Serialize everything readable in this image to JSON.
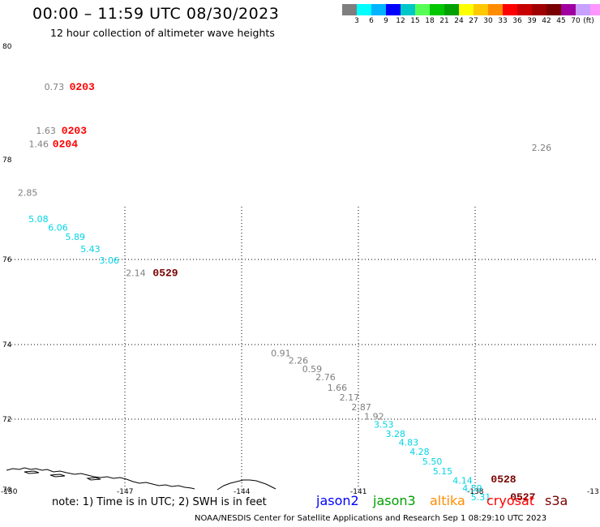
{
  "header": {
    "title": "00:00 – 11:59 UTC 08/30/2023",
    "subtitle": "12 hour collection of altimeter wave heights"
  },
  "colorbar": {
    "colors": [
      "#7f7f7f",
      "#00ffff",
      "#00b4ff",
      "#0000ff",
      "#00c8c8",
      "#55ff55",
      "#00c800",
      "#00a000",
      "#ffff00",
      "#ffc800",
      "#ff8c00",
      "#ff0000",
      "#c80000",
      "#a00000",
      "#780000",
      "#a000a0",
      "#c8a0ff",
      "#ff96ff",
      "#000000"
    ],
    "labels": [
      "3",
      "6",
      "9",
      "12",
      "15",
      "18",
      "21",
      "24",
      "27",
      "30",
      "33",
      "36",
      "39",
      "42",
      "45",
      "70",
      "(ft)"
    ]
  },
  "map": {
    "lat_labels": [
      "80",
      "78",
      "76",
      "74",
      "72",
      "70"
    ],
    "lon_labels": [
      "-150",
      "-147",
      "-144",
      "-141",
      "-138",
      "-13"
    ],
    "wave_labels": [
      {
        "text": "0.73",
        "color": "#7f7f7f",
        "lon": -148.95,
        "lat": 79.01
      },
      {
        "text": "1.63",
        "color": "#7f7f7f",
        "lon": -149.19,
        "lat": 78.03
      },
      {
        "text": "1.46",
        "color": "#7f7f7f",
        "lon": -149.4,
        "lat": 77.72
      },
      {
        "text": "2.26",
        "color": "#7f7f7f",
        "lon": -134.8,
        "lat": 77.64
      },
      {
        "text": "2.85",
        "color": "#7f7f7f",
        "lon": -149.72,
        "lat": 76.63
      },
      {
        "text": "5.08",
        "color": "#00d4e6",
        "lon": -149.41,
        "lat": 76.03
      },
      {
        "text": "6.06",
        "color": "#00d4e6",
        "lon": -148.84,
        "lat": 75.84
      },
      {
        "text": "5.89",
        "color": "#00d4e6",
        "lon": -148.34,
        "lat": 75.63
      },
      {
        "text": "5.43",
        "color": "#00d4e6",
        "lon": -147.9,
        "lat": 75.36
      },
      {
        "text": "3.06",
        "color": "#00d4e6",
        "lon": -147.35,
        "lat": 75.1
      },
      {
        "text": "2.14",
        "color": "#7f7f7f",
        "lon": -146.58,
        "lat": 74.82
      },
      {
        "text": "0.91",
        "color": "#7f7f7f",
        "lon": -142.37,
        "lat": 73.01
      },
      {
        "text": "2.26",
        "color": "#7f7f7f",
        "lon": -141.86,
        "lat": 72.84
      },
      {
        "text": "0.59",
        "color": "#7f7f7f",
        "lon": -141.46,
        "lat": 72.65
      },
      {
        "text": "2.76",
        "color": "#7f7f7f",
        "lon": -141.07,
        "lat": 72.47
      },
      {
        "text": "1.66",
        "color": "#7f7f7f",
        "lon": -140.73,
        "lat": 72.23
      },
      {
        "text": "2.17",
        "color": "#7f7f7f",
        "lon": -140.38,
        "lat": 72.01
      },
      {
        "text": "2.87",
        "color": "#7f7f7f",
        "lon": -140.03,
        "lat": 71.79
      },
      {
        "text": "1.92",
        "color": "#7f7f7f",
        "lon": -139.66,
        "lat": 71.58
      },
      {
        "text": "3.53",
        "color": "#00d4e6",
        "lon": -139.38,
        "lat": 71.4
      },
      {
        "text": "3.28",
        "color": "#00d4e6",
        "lon": -139.04,
        "lat": 71.19
      },
      {
        "text": "4.83",
        "color": "#00d4e6",
        "lon": -138.66,
        "lat": 71.0
      },
      {
        "text": "4.28",
        "color": "#00d4e6",
        "lon": -138.34,
        "lat": 70.79
      },
      {
        "text": "5.50",
        "color": "#00d4e6",
        "lon": -137.97,
        "lat": 70.57
      },
      {
        "text": "5.15",
        "color": "#00d4e6",
        "lon": -137.67,
        "lat": 70.35
      },
      {
        "text": "4.14",
        "color": "#00d4e6",
        "lon": -137.09,
        "lat": 70.14
      },
      {
        "text": "4.59",
        "color": "#00d4e6",
        "lon": -136.81,
        "lat": 69.96
      },
      {
        "text": "5.31",
        "color": "#00d4e6",
        "lon": -136.56,
        "lat": 69.76
      }
    ],
    "pass_labels": [
      {
        "text": "0203",
        "color": "#ff0000",
        "lon": -148.22,
        "lat": 79.01
      },
      {
        "text": "0203",
        "color": "#ff0000",
        "lon": -148.45,
        "lat": 78.03
      },
      {
        "text": "0204",
        "color": "#ff0000",
        "lon": -148.71,
        "lat": 77.72
      },
      {
        "text": "0529",
        "color": "#780000",
        "lon": -145.8,
        "lat": 74.82
      },
      {
        "text": "0528",
        "color": "#780000",
        "lon": -135.98,
        "lat": 70.16
      },
      {
        "text": "0527",
        "color": "#780000",
        "lon": -135.42,
        "lat": 69.76
      }
    ]
  },
  "legend": {
    "note": "note: 1) Time is in UTC; 2) SWH is in feet",
    "satellites": [
      {
        "name": "jason2",
        "color": "#0000ff"
      },
      {
        "name": "jason3",
        "color": "#00a000"
      },
      {
        "name": "altika",
        "color": "#ff8c00"
      },
      {
        "name": "cryosat",
        "color": "#ff0000"
      },
      {
        "name": "s3a",
        "color": "#780000"
      }
    ]
  },
  "footer": {
    "text": "NOAA/NESDIS Center for Satellite Applications and Research   Sep  1 08:29:10 UTC 2023"
  }
}
